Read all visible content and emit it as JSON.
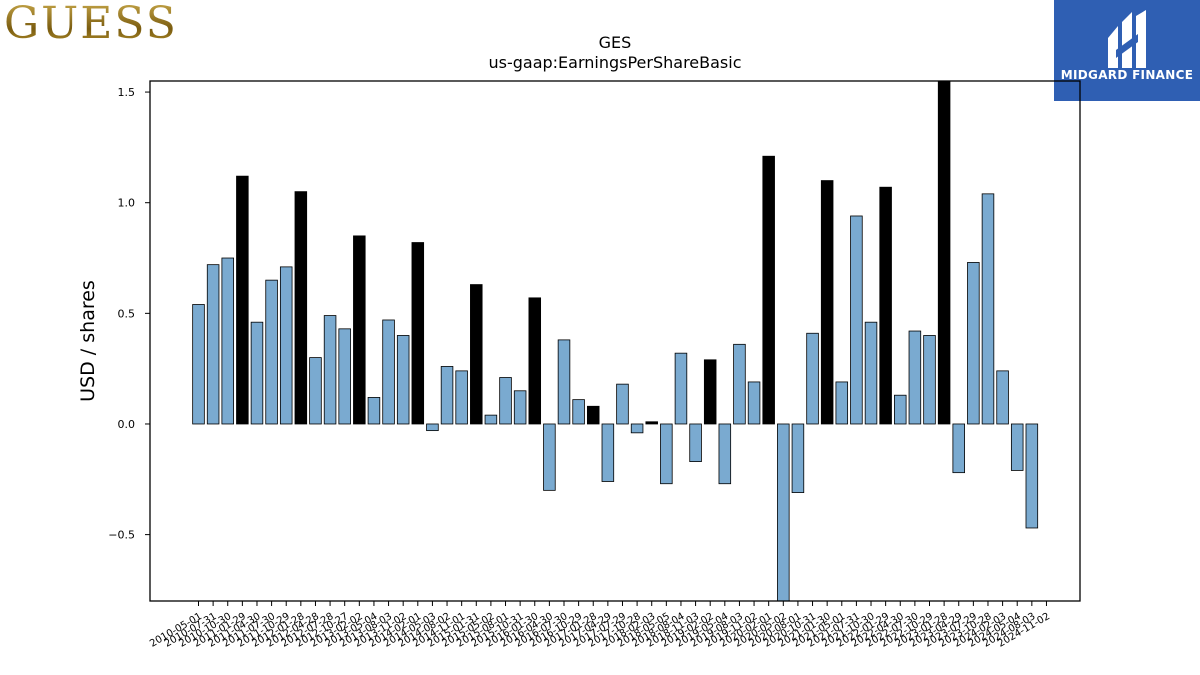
{
  "logos": {
    "left_text": "GUESS",
    "right_text": "MIDGARD FINANCE",
    "right_bg": "#2f5fb3"
  },
  "chart_data": {
    "type": "bar",
    "title": "GES",
    "subtitle": "us-gaap:EarningsPerShareBasic",
    "ylabel": "USD / shares",
    "xlabel": "",
    "ylim": [
      -0.8,
      1.55
    ],
    "yticks": [
      -0.5,
      0.0,
      0.5,
      1.0,
      1.5
    ],
    "ytick_labels": [
      "−0.5",
      "0.0",
      "0.5",
      "1.0",
      "1.5"
    ],
    "colors": {
      "quarterly": "#7aaad0",
      "annual": "#000000"
    },
    "categories": [
      "2010-05-01",
      "2010-07-31",
      "2010-10-30",
      "2011-01-29",
      "2011-04-30",
      "2011-07-30",
      "2011-10-29",
      "2012-01-28",
      "2012-04-28",
      "2012-07-28",
      "2012-10-27",
      "2013-02-02",
      "2013-05-04",
      "2013-08-03",
      "2013-11-02",
      "2014-02-01",
      "2014-05-03",
      "2014-08-02",
      "2014-11-01",
      "2015-01-31",
      "2015-05-02",
      "2015-08-01",
      "2015-10-31",
      "2016-01-30",
      "2016-04-30",
      "2016-07-30",
      "2016-10-29",
      "2017-01-28",
      "2017-04-29",
      "2017-07-29",
      "2017-10-28",
      "2018-02-03",
      "2018-05-05",
      "2018-08-04",
      "2018-11-03",
      "2019-02-02",
      "2019-05-04",
      "2019-08-03",
      "2019-11-02",
      "2020-02-01",
      "2020-05-02",
      "2020-08-01",
      "2020-10-31",
      "2021-01-30",
      "2021-05-01",
      "2021-07-31",
      "2021-10-30",
      "2022-01-29",
      "2022-04-30",
      "2022-07-30",
      "2022-10-29",
      "2023-01-28",
      "2023-04-29",
      "2023-07-29",
      "2023-10-28",
      "2024-02-03",
      "2024-05-04",
      "2024-08-03",
      "2024-11-02"
    ],
    "values": [
      0.54,
      0.72,
      0.75,
      1.12,
      0.46,
      0.65,
      0.71,
      1.05,
      0.3,
      0.49,
      0.43,
      0.85,
      0.12,
      0.47,
      0.4,
      0.82,
      -0.03,
      0.26,
      0.24,
      0.63,
      0.04,
      0.21,
      0.15,
      0.57,
      -0.3,
      0.38,
      0.11,
      0.08,
      -0.26,
      0.18,
      -0.04,
      0.01,
      -0.27,
      0.32,
      -0.17,
      0.29,
      -0.27,
      0.36,
      0.19,
      1.21,
      -0.8,
      -0.31,
      0.41,
      1.1,
      0.19,
      0.94,
      0.46,
      1.07,
      0.13,
      0.42,
      0.4,
      1.55,
      -0.22,
      0.73,
      1.04,
      0.24,
      -0.21,
      -0.47,
      null
    ],
    "annual": [
      false,
      false,
      false,
      true,
      false,
      false,
      false,
      true,
      false,
      false,
      false,
      true,
      false,
      false,
      false,
      true,
      false,
      false,
      false,
      true,
      false,
      false,
      false,
      true,
      false,
      false,
      false,
      true,
      false,
      false,
      false,
      true,
      false,
      false,
      false,
      true,
      false,
      false,
      false,
      true,
      false,
      false,
      false,
      true,
      false,
      false,
      false,
      true,
      false,
      false,
      false,
      true,
      false,
      false,
      false,
      false,
      false,
      false,
      false
    ],
    "grid": false,
    "legend": "none"
  }
}
